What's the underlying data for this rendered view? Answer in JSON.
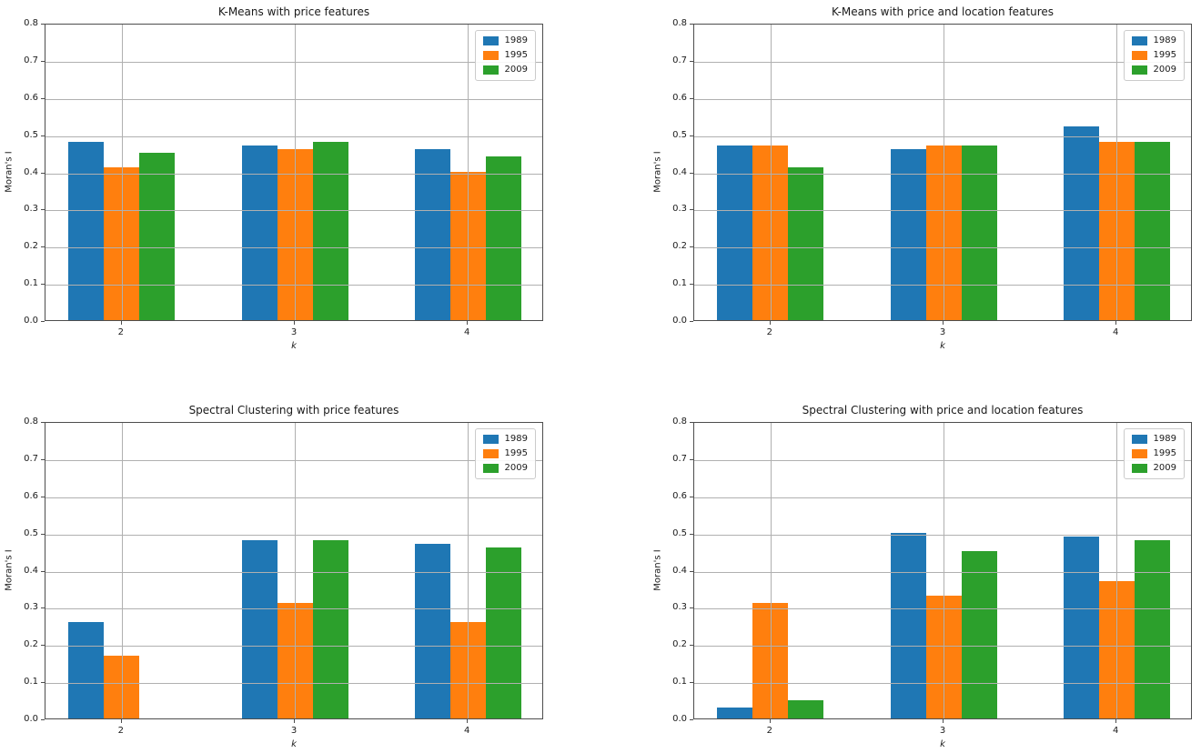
{
  "style": {
    "background": "#ffffff",
    "grid_color": "#b0b0b0",
    "spine_color": "#4d4d4d",
    "text_color": "#1a1a1a"
  },
  "palette": {
    "1989": "#1f77b4",
    "1995": "#ff7f0e",
    "2009": "#2ca02c"
  },
  "chart_data": [
    {
      "type": "bar",
      "title": "K-Means with price features",
      "xlabel": "k",
      "ylabel": "Moran's I",
      "categories": [
        "2",
        "3",
        "4"
      ],
      "series": [
        {
          "name": "1989",
          "color": "#1f77b4",
          "values": [
            0.48,
            0.47,
            0.46
          ]
        },
        {
          "name": "1995",
          "color": "#ff7f0e",
          "values": [
            0.41,
            0.46,
            0.4
          ]
        },
        {
          "name": "2009",
          "color": "#2ca02c",
          "values": [
            0.45,
            0.48,
            0.44
          ]
        }
      ],
      "ylim": [
        0.0,
        0.8
      ],
      "yticks": [
        "0.0",
        "0.1",
        "0.2",
        "0.3",
        "0.4",
        "0.5",
        "0.6",
        "0.7",
        "0.8"
      ],
      "grid": true,
      "legend_position": "upper right"
    },
    {
      "type": "bar",
      "title": "K-Means with price and location features",
      "xlabel": "k",
      "ylabel": "Moran's I",
      "categories": [
        "2",
        "3",
        "4"
      ],
      "series": [
        {
          "name": "1989",
          "color": "#1f77b4",
          "values": [
            0.47,
            0.46,
            0.52
          ]
        },
        {
          "name": "1995",
          "color": "#ff7f0e",
          "values": [
            0.47,
            0.47,
            0.48
          ]
        },
        {
          "name": "2009",
          "color": "#2ca02c",
          "values": [
            0.41,
            0.47,
            0.48
          ]
        }
      ],
      "ylim": [
        0.0,
        0.8
      ],
      "yticks": [
        "0.0",
        "0.1",
        "0.2",
        "0.3",
        "0.4",
        "0.5",
        "0.6",
        "0.7",
        "0.8"
      ],
      "grid": true,
      "legend_position": "upper right"
    },
    {
      "type": "bar",
      "title": "Spectral Clustering with price features",
      "xlabel": "k",
      "ylabel": "Moran's I",
      "categories": [
        "2",
        "3",
        "4"
      ],
      "series": [
        {
          "name": "1989",
          "color": "#1f77b4",
          "values": [
            0.26,
            0.48,
            0.47
          ]
        },
        {
          "name": "1995",
          "color": "#ff7f0e",
          "values": [
            0.17,
            0.31,
            0.26
          ]
        },
        {
          "name": "2009",
          "color": "#2ca02c",
          "values": [
            0.0,
            0.48,
            0.46
          ]
        }
      ],
      "ylim": [
        0.0,
        0.8
      ],
      "yticks": [
        "0.0",
        "0.1",
        "0.2",
        "0.3",
        "0.4",
        "0.5",
        "0.6",
        "0.7",
        "0.8"
      ],
      "grid": true,
      "legend_position": "upper right"
    },
    {
      "type": "bar",
      "title": "Spectral Clustering with price and location features",
      "xlabel": "k",
      "ylabel": "Moran's I",
      "categories": [
        "2",
        "3",
        "4"
      ],
      "series": [
        {
          "name": "1989",
          "color": "#1f77b4",
          "values": [
            0.03,
            0.5,
            0.49
          ]
        },
        {
          "name": "1995",
          "color": "#ff7f0e",
          "values": [
            0.31,
            0.33,
            0.37
          ]
        },
        {
          "name": "2009",
          "color": "#2ca02c",
          "values": [
            0.05,
            0.45,
            0.48
          ]
        }
      ],
      "ylim": [
        0.0,
        0.8
      ],
      "yticks": [
        "0.0",
        "0.1",
        "0.2",
        "0.3",
        "0.4",
        "0.5",
        "0.6",
        "0.7",
        "0.8"
      ],
      "grid": true,
      "legend_position": "upper right"
    }
  ]
}
